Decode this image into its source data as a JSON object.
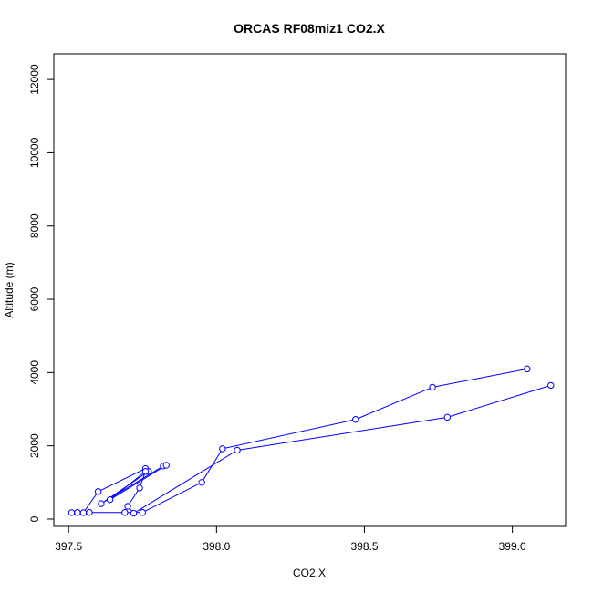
{
  "chart_data": {
    "type": "line",
    "title": "ORCAS RF08miz1 CO2.X",
    "xlabel": "CO2.X",
    "ylabel": "Altitude (m)",
    "xlim": [
      397.45,
      399.18
    ],
    "ylim": [
      -200,
      12700
    ],
    "x_ticks": [
      397.5,
      398.0,
      398.5,
      399.0
    ],
    "x_tick_labels": [
      "397.5",
      "398.0",
      "398.5",
      "399.0"
    ],
    "y_ticks": [
      0,
      2000,
      4000,
      6000,
      8000,
      10000,
      12000
    ],
    "y_tick_labels": [
      "0",
      "2000",
      "4000",
      "6000",
      "8000",
      "10000",
      "12000"
    ],
    "grid": false,
    "line_color": "#0000ff",
    "marker": "open-circle",
    "series": [
      {
        "points": [
          [
            399.05,
            4100
          ],
          [
            398.73,
            3600
          ],
          [
            398.47,
            2720
          ],
          [
            398.02,
            1920
          ],
          [
            397.95,
            1000
          ],
          [
            397.75,
            180
          ],
          [
            397.69,
            180
          ],
          [
            397.57,
            180
          ],
          [
            397.51,
            175
          ],
          [
            397.53,
            180
          ],
          [
            397.55,
            175
          ],
          [
            397.6,
            750
          ],
          [
            397.76,
            1380
          ],
          [
            397.77,
            1300
          ],
          [
            397.61,
            420
          ],
          [
            397.82,
            1450
          ],
          [
            397.83,
            1470
          ],
          [
            397.64,
            530
          ],
          [
            397.76,
            1300
          ],
          [
            397.74,
            850
          ],
          [
            397.7,
            350
          ],
          [
            397.72,
            160
          ],
          [
            398.07,
            1880
          ],
          [
            398.78,
            2780
          ],
          [
            399.13,
            3650
          ]
        ]
      }
    ]
  }
}
